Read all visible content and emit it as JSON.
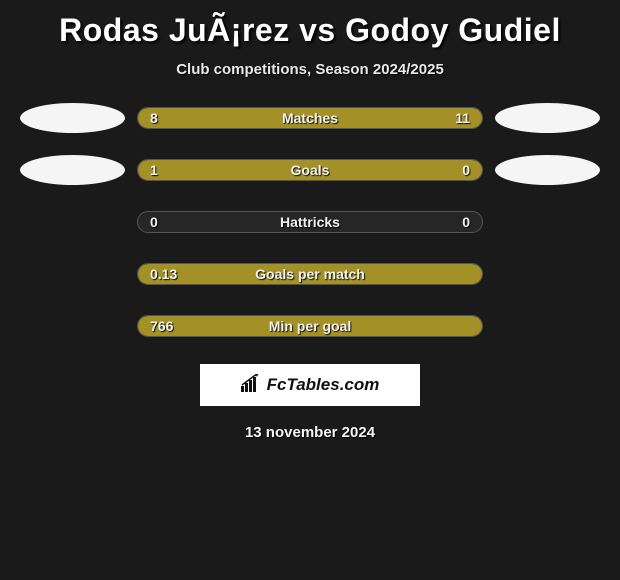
{
  "title": "Rodas JuÃ¡rez vs Godoy Gudiel",
  "subtitle": "Club competitions, Season 2024/2025",
  "date": "13 november 2024",
  "branding_text": "FcTables.com",
  "colors": {
    "background": "#1a1a1a",
    "bar_fill": "#a39128",
    "bar_track": "#262626",
    "ellipse": "#f5f5f5",
    "text": "#ffffff"
  },
  "stats": [
    {
      "label": "Matches",
      "left_val": "8",
      "right_val": "11",
      "left_pct": 42,
      "right_pct": 58,
      "has_left_ellipse": true,
      "has_right_ellipse": true
    },
    {
      "label": "Goals",
      "left_val": "1",
      "right_val": "0",
      "left_pct": 80,
      "right_pct": 20,
      "has_left_ellipse": true,
      "has_right_ellipse": true
    },
    {
      "label": "Hattricks",
      "left_val": "0",
      "right_val": "0",
      "left_pct": 0,
      "right_pct": 0,
      "has_left_ellipse": false,
      "has_right_ellipse": false
    },
    {
      "label": "Goals per match",
      "left_val": "0.13",
      "right_val": "",
      "left_pct": 100,
      "right_pct": 0,
      "has_left_ellipse": false,
      "has_right_ellipse": false
    },
    {
      "label": "Min per goal",
      "left_val": "766",
      "right_val": "",
      "left_pct": 100,
      "right_pct": 0,
      "has_left_ellipse": false,
      "has_right_ellipse": false
    }
  ]
}
